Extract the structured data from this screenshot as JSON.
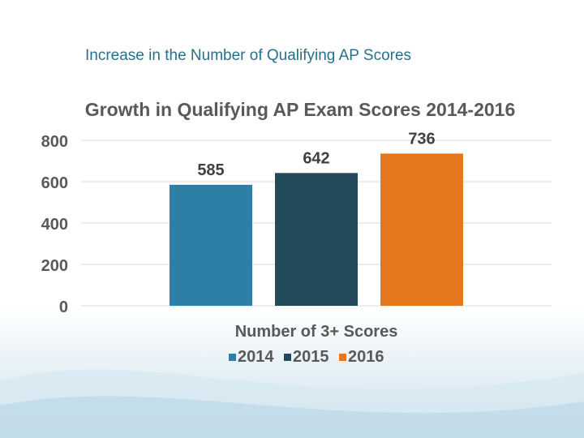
{
  "slide": {
    "title": "Increase in the Number of Qualifying AP Scores"
  },
  "chart_data": {
    "type": "bar",
    "title": "Growth in Qualifying AP Exam Scores 2014-2016",
    "xlabel": "Number of 3+ Scores",
    "ylabel": "",
    "ylim": [
      0,
      800
    ],
    "yticks": [
      0,
      200,
      400,
      600,
      800
    ],
    "categories": [
      "Number of 3+ Scores"
    ],
    "series": [
      {
        "name": "2014",
        "values": [
          585
        ],
        "color": "#2e7fa5"
      },
      {
        "name": "2015",
        "values": [
          642
        ],
        "color": "#234a5a"
      },
      {
        "name": "2016",
        "values": [
          736
        ],
        "color": "#e5781e"
      }
    ],
    "grid": true,
    "legend": "bottom",
    "data_labels": true
  }
}
